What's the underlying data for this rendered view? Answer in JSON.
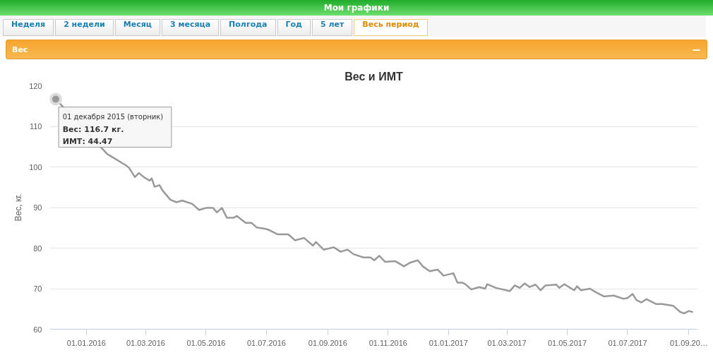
{
  "chart_data": {
    "type": "line",
    "title": "Вес и ИМТ",
    "ylabel": "Вес, кг.",
    "annotations": [
      "Мои графики",
      "Неделя",
      "2 недели",
      "Месяц",
      "3 месяца",
      "Полгода",
      "Год",
      "5 лет",
      "Весь период",
      "Вес",
      "−",
      {
        "text": "01 декабря 2015 (вторник)\nВес: 116.7 кг.\nИМТ: 44.47",
        "x": "2015-12-01",
        "y": 116.7
      }
    ],
    "x": [
      "2015-12-01",
      "2016-01-22",
      "2016-02-10",
      "2016-02-13",
      "2016-02-19",
      "2016-02-23",
      "2016-02-28",
      "2016-03-05",
      "2016-03-07",
      "2016-03-10",
      "2016-03-15",
      "2016-03-18",
      "2016-03-26",
      "2016-04-01",
      "2016-04-07",
      "2016-04-17",
      "2016-04-24",
      "2016-05-01",
      "2016-05-08",
      "2016-05-12",
      "2016-05-17",
      "2016-05-22",
      "2016-05-29",
      "2016-06-01",
      "2016-06-10",
      "2016-06-16",
      "2016-06-21",
      "2016-07-01",
      "2016-07-05",
      "2016-07-12",
      "2016-07-23",
      "2016-07-30",
      "2016-08-08",
      "2016-08-17",
      "2016-08-20",
      "2016-08-28",
      "2016-09-07",
      "2016-09-14",
      "2016-09-21",
      "2016-09-27",
      "2016-10-07",
      "2016-10-14",
      "2016-10-18",
      "2016-10-23",
      "2016-10-29",
      "2016-11-08",
      "2016-11-17",
      "2016-11-23",
      "2016-12-01",
      "2016-12-06",
      "2016-12-13",
      "2016-12-21",
      "2016-12-27",
      "2017-01-06",
      "2017-01-10",
      "2017-01-15",
      "2017-01-18",
      "2017-01-24",
      "2017-02-01",
      "2017-02-07",
      "2017-02-09",
      "2017-02-18",
      "2017-03-04",
      "2017-03-09",
      "2017-03-14",
      "2017-03-19",
      "2017-03-24",
      "2017-03-30",
      "2017-04-04",
      "2017-04-09",
      "2017-04-20",
      "2017-04-23",
      "2017-04-28",
      "2017-05-08",
      "2017-05-11",
      "2017-05-15",
      "2017-05-24",
      "2017-05-30",
      "2017-06-07",
      "2017-06-17",
      "2017-06-27",
      "2017-07-01",
      "2017-07-06",
      "2017-07-10",
      "2017-07-15",
      "2017-07-20",
      "2017-07-30",
      "2017-08-05",
      "2017-08-16",
      "2017-08-23",
      "2017-08-27",
      "2017-09-01",
      "2017-09-05"
    ],
    "series": [
      {
        "color": "#999999",
        "values": [
          116.7,
          103.2,
          100.4,
          99.8,
          97.5,
          98.5,
          97.5,
          96.6,
          97.2,
          95.1,
          95.5,
          94.2,
          91.9,
          91.3,
          91.7,
          90.9,
          89.4,
          89.9,
          89.9,
          88.8,
          89.9,
          87.5,
          87.5,
          87.9,
          86.2,
          86.2,
          85.1,
          84.7,
          84.3,
          83.4,
          83.4,
          81.9,
          82.5,
          80.6,
          81.5,
          79.6,
          80.2,
          79.1,
          79.6,
          78.5,
          77.7,
          77.7,
          77.0,
          78.1,
          76.6,
          76.8,
          75.5,
          76.4,
          77.0,
          75.5,
          74.3,
          74.7,
          73.2,
          73.8,
          71.5,
          71.5,
          71.1,
          69.8,
          70.4,
          70.0,
          71.1,
          70.2,
          69.4,
          70.8,
          70.2,
          71.3,
          70.4,
          71.0,
          69.6,
          70.8,
          71.0,
          70.2,
          71.1,
          69.6,
          70.6,
          69.6,
          70.0,
          69.1,
          68.1,
          68.3,
          67.5,
          67.7,
          68.7,
          67.2,
          66.6,
          67.4,
          66.2,
          66.2,
          65.8,
          64.3,
          63.9,
          64.5,
          64.2
        ]
      }
    ],
    "xlim": [
      "2015-11-25",
      "2017-09-10"
    ],
    "xticks": [
      {
        "value": "2016-01-01",
        "label": "01.01.2016"
      },
      {
        "value": "2016-03-01",
        "label": "01.03.2016"
      },
      {
        "value": "2016-05-01",
        "label": "01.05.2016"
      },
      {
        "value": "2016-07-01",
        "label": "01.07.2016"
      },
      {
        "value": "2016-09-01",
        "label": "01.09.2016"
      },
      {
        "value": "2016-11-01",
        "label": "01.11.2016"
      },
      {
        "value": "2017-01-01",
        "label": "01.01.2017"
      },
      {
        "value": "2017-03-01",
        "label": "01.03.2017"
      },
      {
        "value": "2017-05-01",
        "label": "01.05.2017"
      },
      {
        "value": "2017-07-01",
        "label": "01.07.2017"
      },
      {
        "value": "2017-09-01",
        "label": "01.09.20…"
      }
    ],
    "ylim": [
      60,
      120
    ],
    "yticks": [
      60,
      70,
      80,
      90,
      100,
      110,
      120
    ],
    "grid": "y",
    "marker": "none",
    "line_style": "solid"
  }
}
